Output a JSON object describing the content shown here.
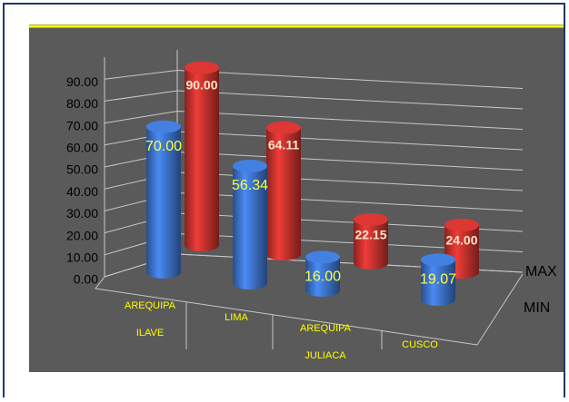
{
  "chart_data": {
    "type": "bar3d",
    "categories": [
      "AREQUIPA ILAVE",
      "LIMA",
      "AREQUIPA JULIACA",
      "CUSCO"
    ],
    "series": [
      {
        "name": "MAX",
        "color": "#c0302c",
        "values": [
          90,
          64.11,
          22.15,
          24
        ],
        "value_labels": [
          "90.00",
          "64.11",
          "22.15",
          "24.00"
        ]
      },
      {
        "name": "MIN",
        "color": "#3a6fc4",
        "values": [
          70,
          56.34,
          16,
          19.07
        ],
        "value_labels": [
          "70.00",
          "56.34",
          "16.00",
          "19.07"
        ]
      }
    ],
    "ylim": [
      0,
      100
    ],
    "yticks": [
      {
        "value": 0,
        "label": "0.00"
      },
      {
        "value": 10,
        "label": "10.00"
      },
      {
        "value": 20,
        "label": "20.00"
      },
      {
        "value": 30,
        "label": "30.00"
      },
      {
        "value": 40,
        "label": "40.00"
      },
      {
        "value": 50,
        "label": "50.00"
      },
      {
        "value": 60,
        "label": "60.00"
      },
      {
        "value": 70,
        "label": "70.00"
      },
      {
        "value": 80,
        "label": "80.00"
      },
      {
        "value": 90,
        "label": "90.00"
      }
    ],
    "grid": true
  }
}
